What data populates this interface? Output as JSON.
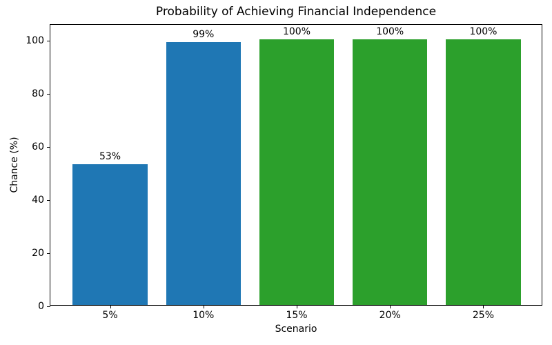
{
  "chart_data": {
    "type": "bar",
    "title": "Probability of Achieving Financial Independence",
    "xlabel": "Scenario",
    "ylabel": "Chance (%)",
    "categories": [
      "5%",
      "10%",
      "15%",
      "20%",
      "25%"
    ],
    "values": [
      53,
      99,
      100,
      100,
      100
    ],
    "bar_labels": [
      "53%",
      "99%",
      "100%",
      "100%",
      "100%"
    ],
    "bar_colors": [
      "#1f77b4",
      "#1f77b4",
      "#2ca02c",
      "#2ca02c",
      "#2ca02c"
    ],
    "yticks": [
      0,
      20,
      40,
      60,
      80,
      100
    ],
    "ylim": [
      0,
      106
    ],
    "xlim": [
      -0.64,
      4.64
    ],
    "bar_width_units": 0.8,
    "grid": false,
    "legend_position": "none",
    "text_color": "#000000",
    "spine_color": "#000000"
  }
}
